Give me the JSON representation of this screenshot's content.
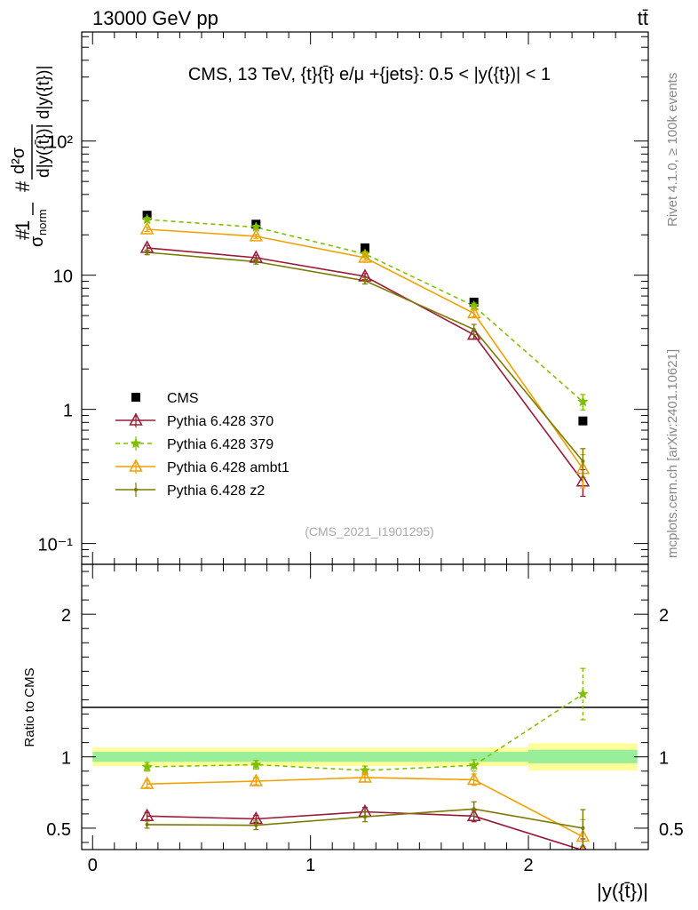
{
  "header": {
    "energy_label": "13000 GeV pp",
    "process_label": "tt̄"
  },
  "side": {
    "rivet": "Rivet 4.1.0, ≥ 100k events",
    "mcplots": "mcplots.cern.ch [arXiv:2401.10621]"
  },
  "chart_data": [
    {
      "type": "line",
      "panel": "main",
      "title": "CMS, 13 TeV, {t}{t̄} e/μ +{jets}: 0.5 < |y({t})| < 1",
      "watermark": "(CMS_2021_I1901295)",
      "ylabel": "#1/σnorm #d²σ/d|y({t̄})| d|y({t})|",
      "yscale": "log",
      "ylim": [
        0.07,
        650
      ],
      "xlim": [
        -0.05,
        2.55
      ],
      "ytick_labels": [
        "10⁻¹",
        "1",
        "10",
        "10²"
      ],
      "legend_position": "middle-left",
      "x": [
        0.25,
        0.75,
        1.25,
        1.75,
        2.25
      ],
      "series": [
        {
          "name": "CMS",
          "color": "#000000",
          "style": "marker-square",
          "values": [
            28,
            24,
            16,
            6.3,
            0.82
          ]
        },
        {
          "name": "Pythia 6.428 370",
          "color": "#9a1a36",
          "style": "solid-triangle-open",
          "values": [
            16,
            13.5,
            9.8,
            3.6,
            0.29
          ],
          "err": [
            0.7,
            0.6,
            0.5,
            0.25,
            0.065
          ]
        },
        {
          "name": "Pythia 6.428 379",
          "color": "#7fbf00",
          "style": "dashed-star",
          "values": [
            26,
            22.8,
            14.4,
            5.9,
            1.14
          ],
          "err": [
            0.9,
            0.8,
            0.6,
            0.3,
            0.15
          ]
        },
        {
          "name": "Pythia 6.428 ambt1",
          "color": "#f0a000",
          "style": "solid-triangle-open",
          "values": [
            22,
            19.5,
            13.5,
            5.2,
            0.36
          ],
          "err": [
            0.8,
            0.7,
            0.6,
            0.3,
            0.1
          ]
        },
        {
          "name": "Pythia 6.428 z2",
          "color": "#7a7a00",
          "style": "solid-dot",
          "values": [
            14.8,
            12.6,
            9.1,
            3.95,
            0.41
          ],
          "err": [
            0.6,
            0.5,
            0.5,
            0.35,
            0.1
          ]
        }
      ]
    },
    {
      "type": "line",
      "panel": "ratio",
      "ylabel": "Ratio to CMS",
      "xlabel": "|y({t̄})|",
      "ylim": [
        0.35,
        2.35
      ],
      "xlim": [
        -0.05,
        2.55
      ],
      "ytick_labels": [
        "0.5",
        "1",
        "2"
      ],
      "xtick_labels": [
        "0",
        "1",
        "2"
      ],
      "x": [
        0.25,
        0.75,
        1.25,
        1.75,
        2.25
      ],
      "bands": [
        {
          "x0": 0.0,
          "x1": 2.0,
          "inner": [
            0.965,
            1.035
          ],
          "outer": [
            0.935,
            1.065
          ]
        },
        {
          "x0": 2.0,
          "x1": 2.5,
          "inner": [
            0.955,
            1.05
          ],
          "outer": [
            0.905,
            1.095
          ]
        }
      ],
      "series": [
        {
          "name": "Pythia 6.428 370",
          "values": [
            0.585,
            0.565,
            0.615,
            0.585,
            0.345
          ],
          "err": [
            0.025,
            0.025,
            0.03,
            0.04,
            0.08
          ]
        },
        {
          "name": "Pythia 6.428 379",
          "values": [
            0.93,
            0.945,
            0.905,
            0.94,
            1.44
          ],
          "err": [
            0.03,
            0.03,
            0.03,
            0.04,
            0.18
          ]
        },
        {
          "name": "Pythia 6.428 ambt1",
          "values": [
            0.81,
            0.83,
            0.855,
            0.84,
            0.44
          ],
          "err": [
            0.025,
            0.025,
            0.03,
            0.04,
            0.12
          ]
        },
        {
          "name": "Pythia 6.428 z2",
          "values": [
            0.525,
            0.52,
            0.58,
            0.635,
            0.5
          ],
          "err": [
            0.025,
            0.03,
            0.035,
            0.05,
            0.13
          ]
        }
      ]
    }
  ]
}
